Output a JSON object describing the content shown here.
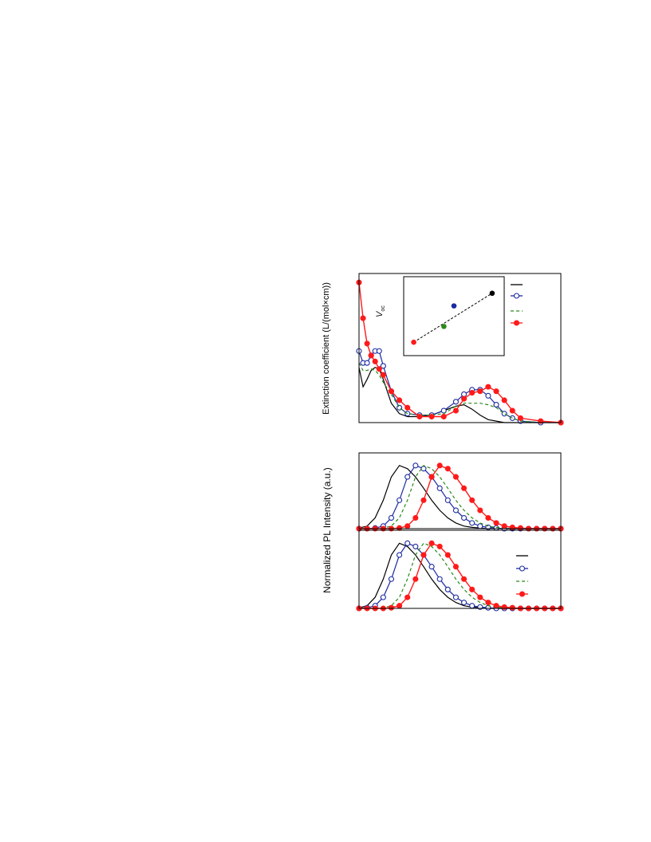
{
  "chart_data": [
    {
      "type": "line",
      "ylabel": "Extinction coefficient (L/(mol×cm))",
      "xlim": [
        0,
        100
      ],
      "ylim": [
        0,
        100
      ],
      "x": [
        0,
        2,
        4,
        6,
        8,
        10,
        12,
        16,
        20,
        24,
        30,
        36,
        42,
        48,
        52,
        56,
        60,
        64,
        68,
        72,
        76,
        80,
        90,
        100
      ],
      "series": [
        {
          "color": "#000000",
          "marker": "none",
          "dash": false,
          "values": [
            37,
            24,
            29,
            35,
            37,
            36,
            29,
            13,
            6,
            4,
            4,
            5,
            8,
            11,
            12,
            9,
            5,
            2,
            1,
            0,
            0,
            0,
            0,
            0
          ]
        },
        {
          "color": "#1a2aa0",
          "marker": "open",
          "dash": false,
          "values": [
            48,
            40,
            40,
            45,
            48,
            48,
            38,
            21,
            10,
            6,
            5,
            5,
            8,
            14,
            19,
            22,
            22,
            18,
            12,
            6,
            3,
            1,
            0,
            0
          ]
        },
        {
          "color": "#2a8a1a",
          "marker": "none",
          "dash": true,
          "values": [
            40,
            35,
            35,
            36,
            35,
            32,
            27,
            19,
            10,
            6,
            5,
            5,
            6,
            11,
            13,
            13,
            13,
            12,
            10,
            6,
            3,
            1,
            0,
            0
          ]
        },
        {
          "color": "#ff1a1a",
          "marker": "filled",
          "dash": false,
          "values": [
            94,
            70,
            53,
            45,
            41,
            36,
            32,
            21,
            15,
            10,
            4,
            4,
            4,
            8,
            16,
            20,
            21,
            24,
            21,
            15,
            8,
            3,
            1,
            0
          ]
        }
      ]
    },
    {
      "type": "scatter",
      "annotation": {
        "text": "V",
        "subscript": "oc"
      },
      "xlim": [
        0,
        100
      ],
      "ylim": [
        0,
        100
      ],
      "trend": true,
      "points": [
        {
          "color": "#ff1a1a",
          "x": 10,
          "y": 17
        },
        {
          "color": "#2a8a1a",
          "x": 40,
          "y": 37
        },
        {
          "color": "#1a2aa0",
          "x": 50,
          "y": 63
        },
        {
          "color": "#000000",
          "x": 88,
          "y": 79
        }
      ]
    },
    {
      "type": "line",
      "ylabel": "Normalized PL Intensity (a.u.)",
      "xlim": [
        0,
        100
      ],
      "ylim": [
        0,
        1.2
      ],
      "x": [
        0,
        4,
        8,
        12,
        16,
        20,
        24,
        28,
        32,
        36,
        40,
        44,
        48,
        52,
        56,
        60,
        64,
        68,
        72,
        76,
        80,
        84,
        88,
        92,
        96,
        100
      ],
      "series": [
        {
          "color": "#000000",
          "marker": "none",
          "dash": false,
          "values": [
            0.01,
            0.04,
            0.17,
            0.45,
            0.82,
            1,
            0.95,
            0.82,
            0.64,
            0.45,
            0.29,
            0.17,
            0.09,
            0.04,
            0.02,
            0.01,
            0,
            0,
            0,
            0,
            0,
            0,
            0,
            0,
            0,
            0
          ]
        },
        {
          "color": "#1a2aa0",
          "marker": "open",
          "dash": false,
          "values": [
            0,
            0,
            0.01,
            0.04,
            0.17,
            0.45,
            0.82,
            1,
            0.95,
            0.82,
            0.64,
            0.45,
            0.29,
            0.17,
            0.09,
            0.04,
            0.02,
            0.01,
            0,
            0,
            0,
            0,
            0,
            0,
            0,
            0
          ]
        },
        {
          "color": "#2a8a1a",
          "marker": "none",
          "dash": true,
          "values": [
            0,
            0,
            0,
            0.01,
            0.04,
            0.17,
            0.45,
            0.82,
            1,
            0.95,
            0.82,
            0.64,
            0.45,
            0.29,
            0.17,
            0.09,
            0.04,
            0.02,
            0.01,
            0,
            0,
            0,
            0,
            0,
            0,
            0
          ]
        },
        {
          "color": "#ff1a1a",
          "marker": "filled",
          "dash": false,
          "values": [
            0,
            0,
            0,
            0,
            0,
            0.01,
            0.04,
            0.17,
            0.45,
            0.82,
            1,
            0.95,
            0.82,
            0.64,
            0.45,
            0.29,
            0.17,
            0.09,
            0.04,
            0.02,
            0.01,
            0,
            0,
            0,
            0,
            0
          ]
        }
      ]
    },
    {
      "type": "line",
      "xlim": [
        0,
        100
      ],
      "ylim": [
        0,
        1.2
      ],
      "x": [
        0,
        4,
        8,
        12,
        16,
        20,
        24,
        28,
        32,
        36,
        40,
        44,
        48,
        52,
        56,
        60,
        64,
        68,
        72,
        76,
        80,
        84,
        88,
        92,
        96,
        100
      ],
      "series": [
        {
          "color": "#000000",
          "marker": "none",
          "dash": false,
          "values": [
            0.01,
            0.04,
            0.17,
            0.45,
            0.82,
            1,
            0.95,
            0.82,
            0.64,
            0.45,
            0.29,
            0.17,
            0.09,
            0.04,
            0.02,
            0.01,
            0,
            0,
            0,
            0,
            0,
            0,
            0,
            0,
            0,
            0
          ]
        },
        {
          "color": "#1a2aa0",
          "marker": "open",
          "dash": false,
          "values": [
            0,
            0.01,
            0.04,
            0.17,
            0.45,
            0.82,
            1,
            0.95,
            0.82,
            0.64,
            0.45,
            0.29,
            0.17,
            0.09,
            0.04,
            0.02,
            0.01,
            0,
            0,
            0,
            0,
            0,
            0,
            0,
            0,
            0
          ]
        },
        {
          "color": "#2a8a1a",
          "marker": "none",
          "dash": true,
          "values": [
            0,
            0,
            0,
            0.01,
            0.04,
            0.17,
            0.45,
            0.82,
            1,
            0.95,
            0.82,
            0.64,
            0.45,
            0.29,
            0.17,
            0.09,
            0.04,
            0.02,
            0.01,
            0,
            0,
            0,
            0,
            0,
            0,
            0
          ]
        },
        {
          "color": "#ff1a1a",
          "marker": "filled",
          "dash": false,
          "values": [
            0,
            0,
            0,
            0,
            0.01,
            0.04,
            0.17,
            0.45,
            0.82,
            1,
            0.95,
            0.82,
            0.64,
            0.45,
            0.29,
            0.17,
            0.09,
            0.04,
            0.02,
            0.01,
            0,
            0,
            0,
            0,
            0,
            0
          ]
        }
      ]
    }
  ]
}
